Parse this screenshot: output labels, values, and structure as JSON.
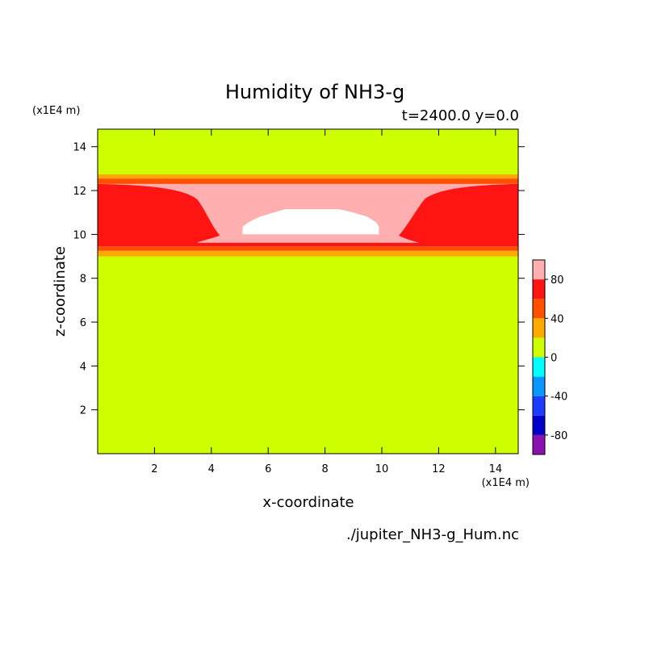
{
  "title": "Humidity of NH3-g",
  "subtitle": "t=2400.0 y=0.0",
  "x_scale_label": "(x1E4 m)",
  "z_scale_label": "(x1E4 m)",
  "xlabel": "x-coordinate",
  "ylabel": "z-coordinate",
  "source": "./jupiter_NH3-g_Hum.nc",
  "chart_data": {
    "type": "heatmap",
    "title": "Humidity of NH3-g",
    "xlabel": "x-coordinate",
    "ylabel": "z-coordinate",
    "xlim": [
      0,
      14.8
    ],
    "ylim": [
      0,
      14.8
    ],
    "x_ticks": [
      2,
      4,
      6,
      8,
      10,
      12,
      14
    ],
    "y_ticks": [
      2,
      4,
      6,
      8,
      10,
      12,
      14
    ],
    "colorbar": {
      "levels": [
        -100,
        -80,
        -60,
        -40,
        -20,
        0,
        20,
        40,
        60,
        80,
        100
      ],
      "colors": [
        "#8b10b0",
        "#0000c8",
        "#1e3cff",
        "#0a96ff",
        "#00ffff",
        "#cdff00",
        "#ffaa00",
        "#ff5000",
        "#ff1414",
        "#ffafaf",
        "#ffffff"
      ],
      "tick_labels": [
        "80",
        "40",
        "0",
        "-40",
        "-80"
      ],
      "tick_values": [
        80,
        40,
        0,
        -40,
        -80
      ]
    },
    "bands": [
      {
        "zmin": 0,
        "zmax": 9.0,
        "level": "0 to 20"
      },
      {
        "zmin": 9.0,
        "zmax": 9.25,
        "level": "20 to 40"
      },
      {
        "zmin": 9.25,
        "zmax": 9.45,
        "level": "40 to 60"
      },
      {
        "zmin": 9.45,
        "zmax": 12.3,
        "level": "60 to 80"
      },
      {
        "zmin": 12.3,
        "zmax": 12.55,
        "level": "40 to 60"
      },
      {
        "zmin": 12.55,
        "zmax": 12.75,
        "level": "20 to 40"
      },
      {
        "zmin": 12.75,
        "zmax": 14.8,
        "level": "0 to 20"
      }
    ],
    "regions": [
      {
        "level": "80 to 100",
        "x_range": [
          3.5,
          11.3
        ],
        "z_range": [
          9.6,
          12.3
        ]
      },
      {
        "level": "above 100",
        "x_range": [
          5.1,
          9.9
        ],
        "z_range": [
          10.0,
          11.2
        ]
      }
    ]
  }
}
